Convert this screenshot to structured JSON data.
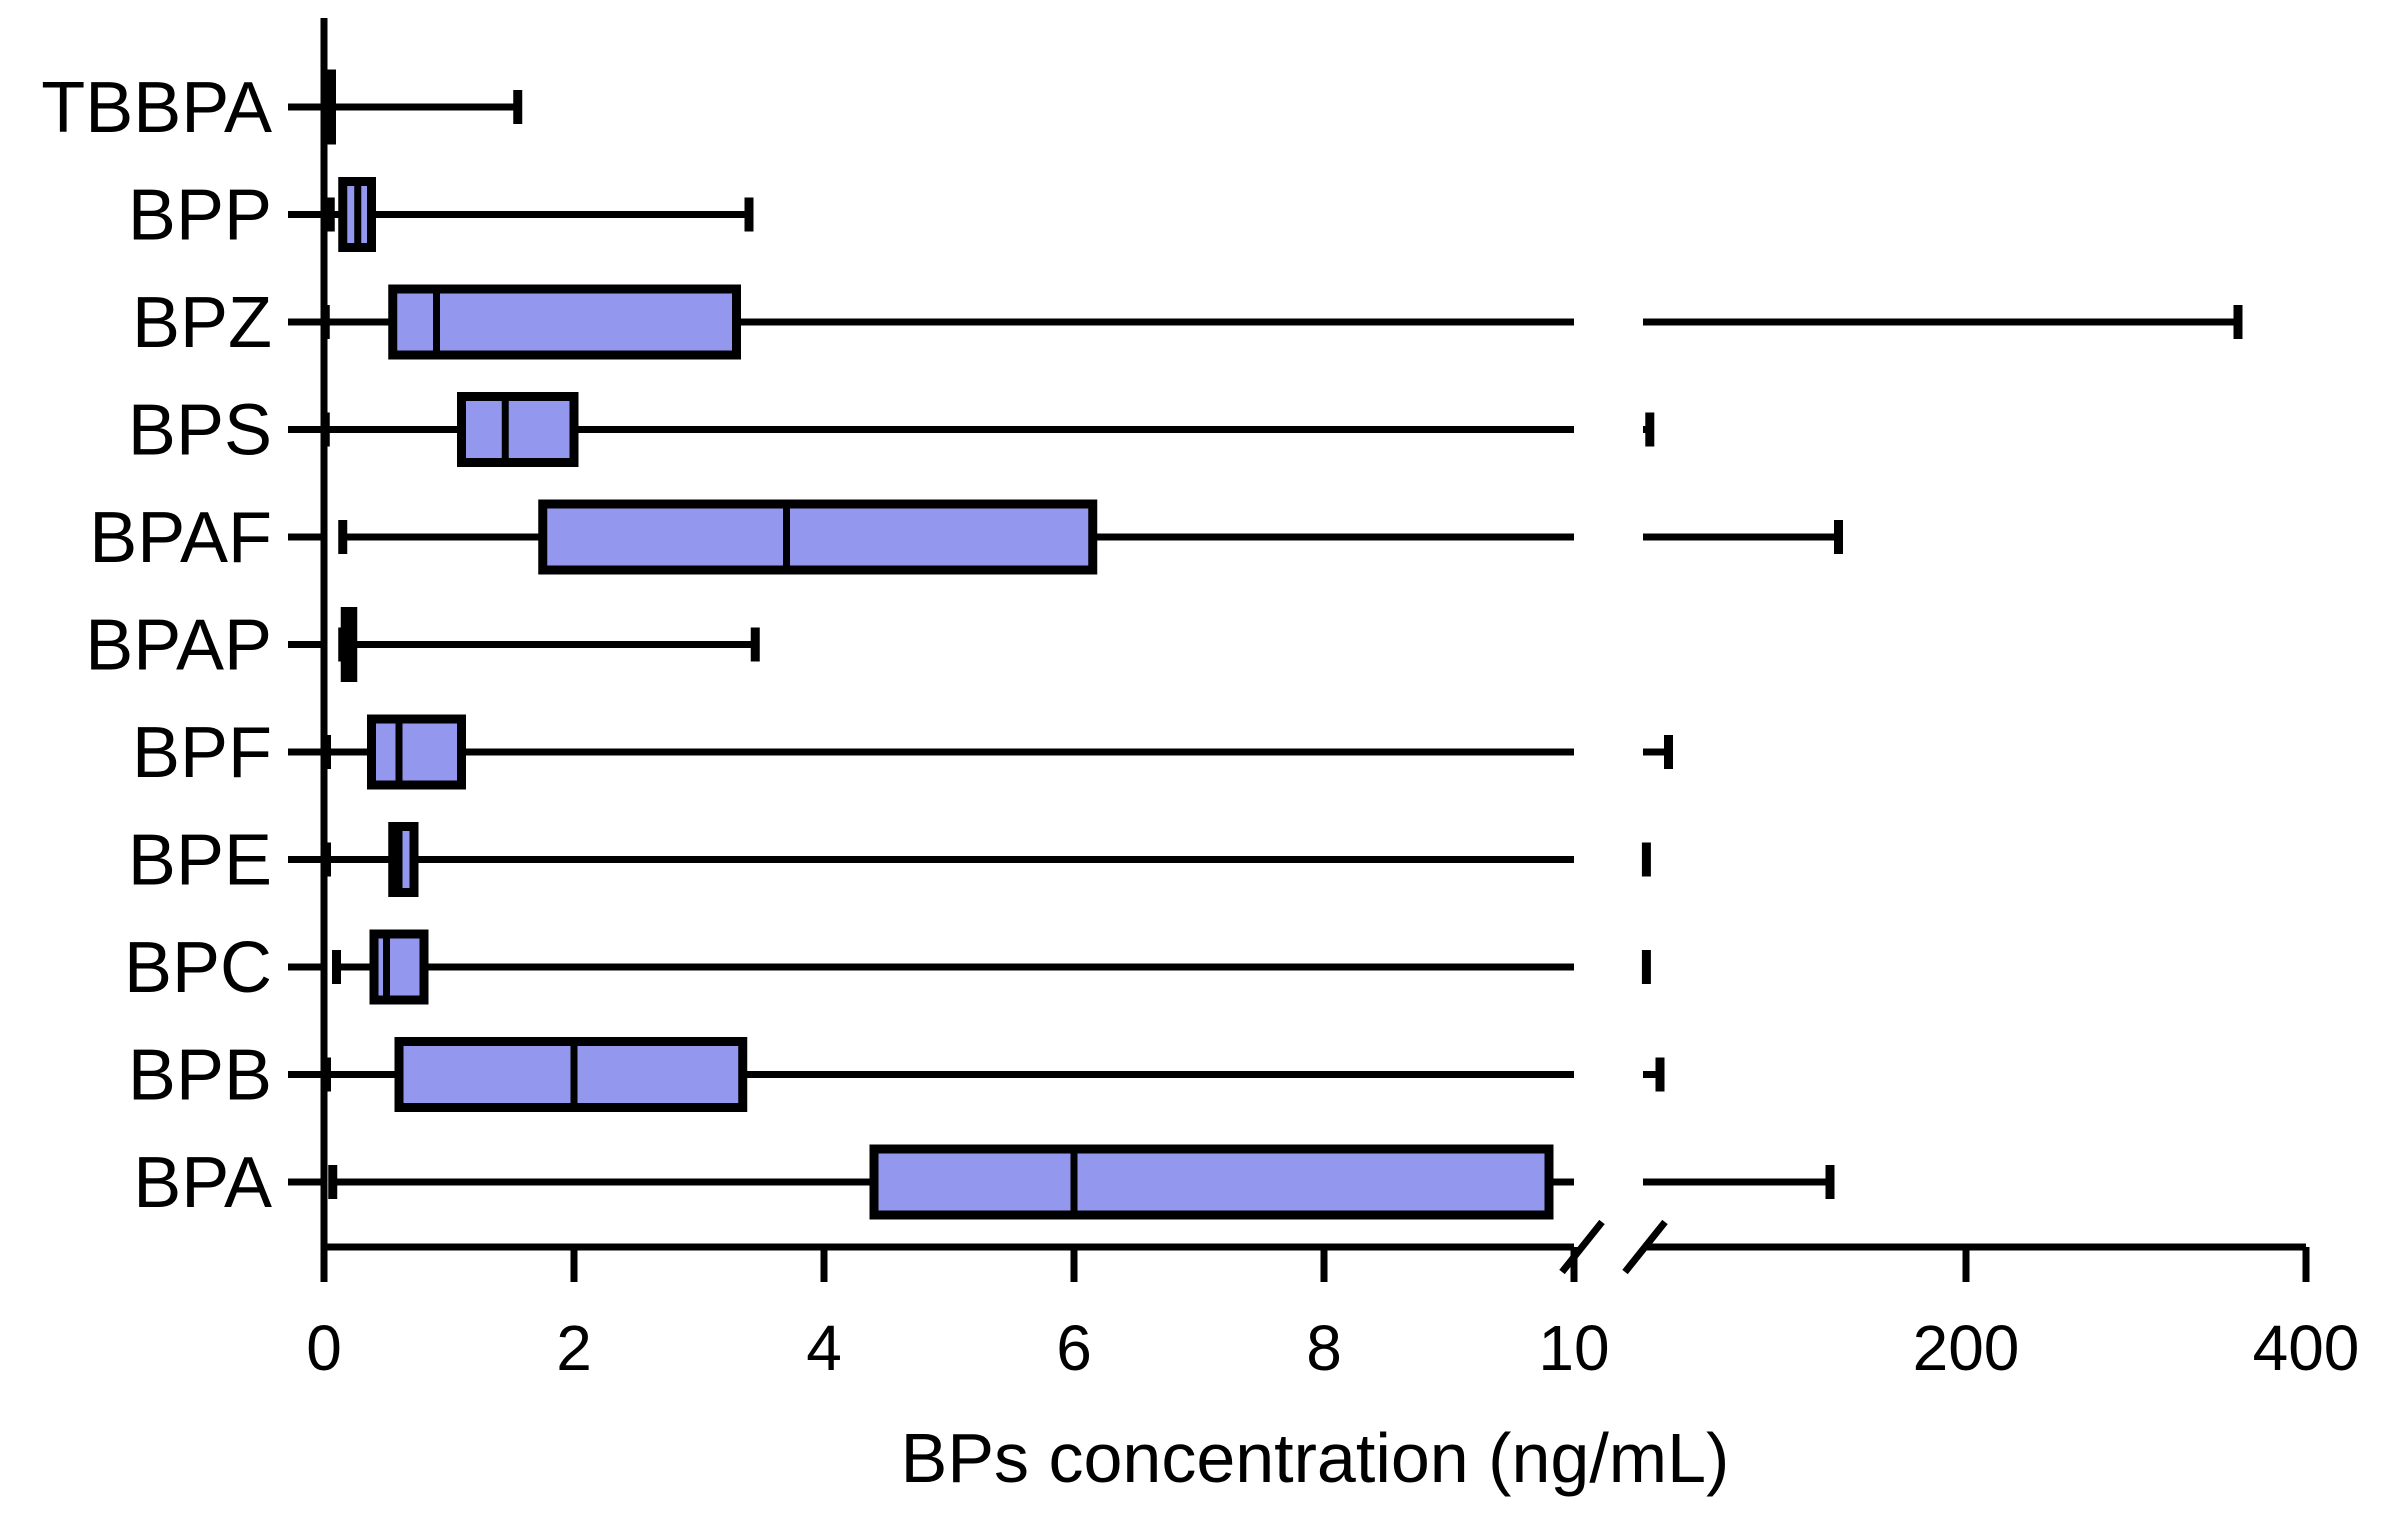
{
  "chart_data": {
    "type": "box",
    "orientation": "horizontal",
    "xlabel": "BPs concentration (ng/mL)",
    "x_scale": "broken",
    "x_segments": [
      {
        "range": [
          0,
          10
        ],
        "ticks": [
          "0",
          "2",
          "4",
          "6",
          "8",
          "10"
        ]
      },
      {
        "range": [
          10,
          400
        ],
        "ticks": [
          "200",
          "400"
        ]
      }
    ],
    "box_color": "#9497EE",
    "categories": [
      "TBBPA",
      "BPP",
      "BPZ",
      "BPS",
      "BPAF",
      "BPAP",
      "BPF",
      "BPE",
      "BPC",
      "BPB",
      "BPA"
    ],
    "series": [
      {
        "min": 0.02,
        "q1": 0.03,
        "median": 0.05,
        "q3": 0.06,
        "max": 1.55
      },
      {
        "min": 0.05,
        "q1": 0.15,
        "median": 0.27,
        "q3": 0.38,
        "max": 3.4
      },
      {
        "min": 0.01,
        "q1": 0.55,
        "median": 0.9,
        "q3": 3.3,
        "max": 360
      },
      {
        "min": 0.01,
        "q1": 1.1,
        "median": 1.45,
        "q3": 2.0,
        "max": 14
      },
      {
        "min": 0.15,
        "q1": 1.75,
        "median": 3.7,
        "q3": 6.15,
        "max": 125
      },
      {
        "min": 0.15,
        "q1": 0.17,
        "median": 0.2,
        "q3": 0.23,
        "max": 3.45
      },
      {
        "min": 0.02,
        "q1": 0.38,
        "median": 0.6,
        "q3": 1.1,
        "max": 25
      },
      {
        "min": 0.02,
        "q1": 0.55,
        "median": 0.6,
        "q3": 0.72,
        "max": 12
      },
      {
        "min": 0.1,
        "q1": 0.4,
        "median": 0.5,
        "q3": 0.8,
        "max": 12
      },
      {
        "min": 0.02,
        "q1": 0.6,
        "median": 2.0,
        "q3": 3.35,
        "max": 20
      },
      {
        "min": 0.07,
        "q1": 4.4,
        "median": 6.0,
        "q3": 9.8,
        "max": 120
      }
    ]
  }
}
